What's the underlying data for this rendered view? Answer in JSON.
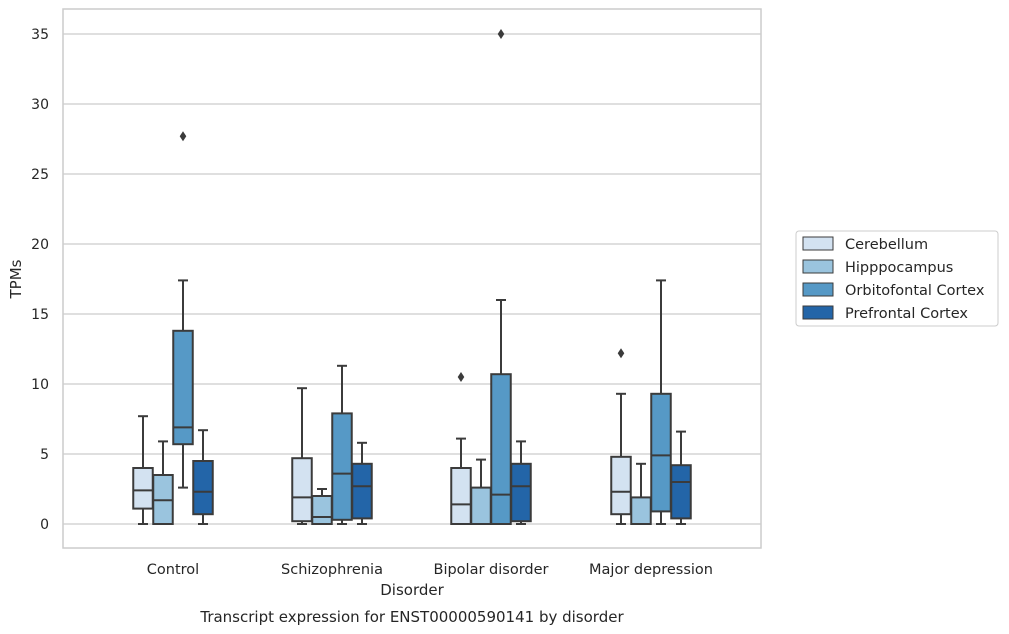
{
  "chart_data": {
    "type": "box",
    "caption": "Transcript expression for ENST00000590141 by disorder",
    "xlabel": "Disorder",
    "ylabel": "TPMs",
    "ylim": [
      -1.7,
      36.9
    ],
    "yticks": [
      0,
      5,
      10,
      15,
      20,
      25,
      30,
      35
    ],
    "grid": true,
    "legend_position": "right",
    "categories": [
      "Control",
      "Schizophrenia",
      "Bipolar disorder",
      "Major depression"
    ],
    "series": [
      {
        "name": "Cerebellum",
        "color": "#d3e2f1",
        "boxes": [
          {
            "whisker_low": 0.0,
            "q1": 1.1,
            "median": 2.4,
            "q3": 4.0,
            "whisker_high": 7.7,
            "outliers": []
          },
          {
            "whisker_low": 0.0,
            "q1": 0.2,
            "median": 1.9,
            "q3": 4.7,
            "whisker_high": 9.7,
            "outliers": []
          },
          {
            "whisker_low": 0.0,
            "q1": 0.0,
            "median": 1.4,
            "q3": 4.0,
            "whisker_high": 6.1,
            "outliers": [
              10.5
            ]
          },
          {
            "whisker_low": 0.0,
            "q1": 0.7,
            "median": 2.3,
            "q3": 4.8,
            "whisker_high": 9.3,
            "outliers": [
              12.2
            ]
          }
        ]
      },
      {
        "name": "Hipppocampus",
        "color": "#9ac4de",
        "boxes": [
          {
            "whisker_low": 0.0,
            "q1": 0.0,
            "median": 1.7,
            "q3": 3.5,
            "whisker_high": 5.9,
            "outliers": []
          },
          {
            "whisker_low": 0.0,
            "q1": 0.0,
            "median": 0.5,
            "q3": 2.0,
            "whisker_high": 2.5,
            "outliers": []
          },
          {
            "whisker_low": 0.0,
            "q1": 0.0,
            "median": 0.0,
            "q3": 2.6,
            "whisker_high": 4.6,
            "outliers": []
          },
          {
            "whisker_low": 0.0,
            "q1": 0.0,
            "median": 0.0,
            "q3": 1.9,
            "whisker_high": 4.3,
            "outliers": []
          }
        ]
      },
      {
        "name": "Orbitofontal Cortex",
        "color": "#5699c6",
        "boxes": [
          {
            "whisker_low": 2.6,
            "q1": 5.7,
            "median": 6.9,
            "q3": 13.8,
            "whisker_high": 17.4,
            "outliers": [
              27.7
            ]
          },
          {
            "whisker_low": 0.0,
            "q1": 0.3,
            "median": 3.6,
            "q3": 7.9,
            "whisker_high": 11.3,
            "outliers": []
          },
          {
            "whisker_low": 0.0,
            "q1": 0.0,
            "median": 2.1,
            "q3": 10.7,
            "whisker_high": 16.0,
            "outliers": [
              35.0
            ]
          },
          {
            "whisker_low": 0.0,
            "q1": 0.9,
            "median": 4.9,
            "q3": 9.3,
            "whisker_high": 17.4,
            "outliers": []
          }
        ]
      },
      {
        "name": "Prefrontal Cortex",
        "color": "#2365a8",
        "boxes": [
          {
            "whisker_low": 0.0,
            "q1": 0.7,
            "median": 2.3,
            "q3": 4.5,
            "whisker_high": 6.7,
            "outliers": []
          },
          {
            "whisker_low": 0.0,
            "q1": 0.4,
            "median": 2.7,
            "q3": 4.3,
            "whisker_high": 5.8,
            "outliers": []
          },
          {
            "whisker_low": 0.0,
            "q1": 0.2,
            "median": 2.7,
            "q3": 4.3,
            "whisker_high": 5.9,
            "outliers": []
          },
          {
            "whisker_low": 0.0,
            "q1": 0.4,
            "median": 3.0,
            "q3": 4.2,
            "whisker_high": 6.6,
            "outliers": []
          }
        ]
      }
    ]
  }
}
